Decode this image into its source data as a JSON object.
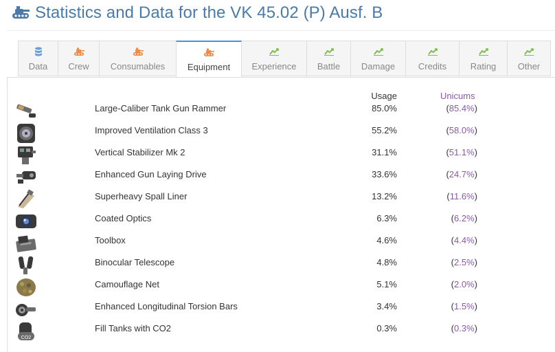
{
  "page": {
    "title": "Statistics and Data for the VK 45.02 (P) Ausf. B",
    "title_icon": "tank-icon"
  },
  "tabs": [
    {
      "label": "Data",
      "icon": "database-icon",
      "color": "#6a9fd4",
      "active": false
    },
    {
      "label": "Crew",
      "icon": "tank-icon",
      "color": "#f08c4a",
      "active": false
    },
    {
      "label": "Consumables",
      "icon": "tank-icon",
      "color": "#f08c4a",
      "active": false
    },
    {
      "label": "Equipment",
      "icon": "tank-icon",
      "color": "#f08c4a",
      "active": true
    },
    {
      "label": "Experience",
      "icon": "trend-icon",
      "color": "#7cbf4a",
      "active": false
    },
    {
      "label": "Battle",
      "icon": "trend-icon",
      "color": "#7cbf4a",
      "active": false
    },
    {
      "label": "Damage",
      "icon": "trend-icon",
      "color": "#7cbf4a",
      "active": false
    },
    {
      "label": "Credits",
      "icon": "trend-icon",
      "color": "#7cbf4a",
      "active": false
    },
    {
      "label": "Rating",
      "icon": "trend-icon",
      "color": "#7cbf4a",
      "active": false
    },
    {
      "label": "Other",
      "icon": "trend-icon",
      "color": "#7cbf4a",
      "active": false
    }
  ],
  "table": {
    "usage_header": "Usage",
    "unicums_header": "Unicums",
    "rows": [
      {
        "name": "Large-Caliber Tank Gun Rammer",
        "usage": "85.0%",
        "unicums": "85.4%",
        "icon": "rammer-icon"
      },
      {
        "name": "Improved Ventilation Class 3",
        "usage": "55.2%",
        "unicums": "58.0%",
        "icon": "ventilation-icon"
      },
      {
        "name": "Vertical Stabilizer Mk 2",
        "usage": "31.1%",
        "unicums": "51.1%",
        "icon": "stabilizer-icon"
      },
      {
        "name": "Enhanced Gun Laying Drive",
        "usage": "33.6%",
        "unicums": "24.7%",
        "icon": "gun-laying-drive-icon"
      },
      {
        "name": "Superheavy Spall Liner",
        "usage": "13.2%",
        "unicums": "11.6%",
        "icon": "spall-liner-icon"
      },
      {
        "name": "Coated Optics",
        "usage": "6.3%",
        "unicums": "6.2%",
        "icon": "optics-icon"
      },
      {
        "name": "Toolbox",
        "usage": "4.6%",
        "unicums": "4.4%",
        "icon": "toolbox-icon"
      },
      {
        "name": "Binocular Telescope",
        "usage": "4.8%",
        "unicums": "2.5%",
        "icon": "binocular-icon"
      },
      {
        "name": "Camouflage Net",
        "usage": "5.1%",
        "unicums": "2.0%",
        "icon": "camo-net-icon"
      },
      {
        "name": "Enhanced Longitudinal Torsion Bars",
        "usage": "3.4%",
        "unicums": "1.5%",
        "icon": "torsion-bars-icon"
      },
      {
        "name": "Fill Tanks with CO2",
        "usage": "0.3%",
        "unicums": "0.3%",
        "icon": "co2-icon",
        "icon_text": "CO2"
      }
    ]
  }
}
